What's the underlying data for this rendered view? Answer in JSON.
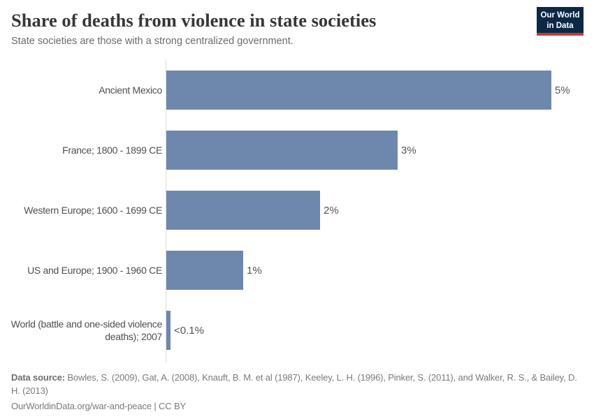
{
  "title": "Share of deaths from violence in state societies",
  "subtitle": "State societies are those with a strong centralized government.",
  "logo": {
    "line1": "Our World",
    "line2": "in Data",
    "bg_color": "#0c2846",
    "stripe_color": "#c73a2f"
  },
  "chart_data": {
    "type": "bar",
    "orientation": "horizontal",
    "categories": [
      "Ancient Mexico",
      "France; 1800 - 1899 CE",
      "Western Europe; 1600 - 1699 CE",
      "US and Europe; 1900 - 1960 CE",
      "World (battle and one-sided violence deaths); 2007"
    ],
    "values": [
      5,
      3,
      2,
      1,
      0.05
    ],
    "value_labels": [
      "5%",
      "3%",
      "2%",
      "1%",
      "<0.1%"
    ],
    "xlim": [
      0,
      5
    ],
    "bar_color": "#6e87ad",
    "axis_color": "#dcdcdc",
    "legend": "none",
    "grid": "off"
  },
  "footer": {
    "source_label": "Data source:",
    "source_text": " Bowles, S. (2009), Gat, A. (2008), Knauft, B. M. et al (1987), Keeley, L. H. (1996), Pinker, S. (2011), and Walker, R. S., & Bailey, D. H. (2013)",
    "link_line": "OurWorldinData.org/war-and-peace | CC BY"
  }
}
